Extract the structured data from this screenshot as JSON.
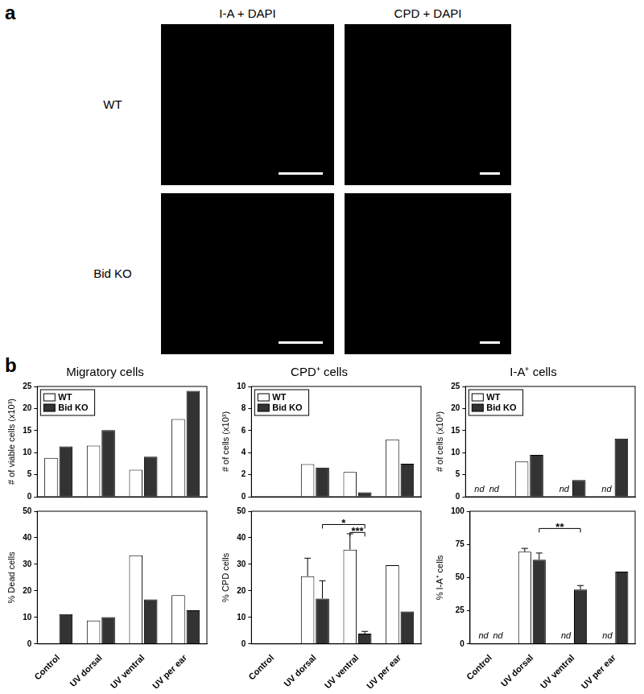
{
  "panel_a": {
    "label": "a",
    "columns": [
      "I-A + DAPI",
      "CPD + DAPI"
    ],
    "rows": [
      "WT",
      "Bid KO"
    ]
  },
  "panel_b": {
    "label": "b"
  },
  "chart_data": [
    {
      "type": "bar",
      "title": "Migratory cells",
      "ylabel": "# of viable cells (x10³)",
      "categories": [
        "Control",
        "UV dorsal",
        "UV ventral",
        "UV per ear"
      ],
      "series": [
        {
          "name": "WT",
          "color": "#ffffff",
          "values": [
            8.8,
            11.6,
            6.1,
            17.6
          ]
        },
        {
          "name": "Bid KO",
          "color": "#333333",
          "values": [
            11.4,
            15.1,
            9.1,
            24.0
          ]
        }
      ],
      "ylim": [
        0,
        25
      ],
      "yticks": [
        0,
        5,
        10,
        15,
        20,
        25
      ],
      "legend": "upper left",
      "tick_labels": "y"
    },
    {
      "type": "bar",
      "title": "CPD⁺ cells",
      "ylabel": "# of cells (x10³)",
      "categories": [
        "Control",
        "UV dorsal",
        "UV ventral",
        "UV per ear"
      ],
      "series": [
        {
          "name": "WT",
          "color": "#ffffff",
          "values": [
            null,
            2.95,
            2.25,
            5.2
          ]
        },
        {
          "name": "Bid KO",
          "color": "#333333",
          "values": [
            null,
            2.65,
            0.4,
            3.0
          ]
        }
      ],
      "ylim": [
        0,
        10
      ],
      "yticks": [
        0,
        2,
        4,
        6,
        8,
        10
      ],
      "legend": "upper left",
      "tick_labels": "y"
    },
    {
      "type": "bar",
      "title": "I-A⁺ cells",
      "ylabel": "# of cells (x10³)",
      "categories": [
        "Control",
        "UV dorsal",
        "UV ventral",
        "UV per ear"
      ],
      "series": [
        {
          "name": "WT",
          "color": "#ffffff",
          "values": [
            null,
            8.0,
            null,
            null
          ],
          "value_labels": [
            "nd",
            null,
            "nd",
            "nd"
          ]
        },
        {
          "name": "Bid KO",
          "color": "#333333",
          "values": [
            null,
            9.5,
            3.8,
            13.2
          ],
          "value_labels": [
            "nd",
            null,
            null,
            null
          ]
        }
      ],
      "ylim": [
        0,
        25
      ],
      "yticks": [
        0,
        5,
        10,
        15,
        20,
        25
      ],
      "legend": "upper left",
      "tick_labels": "y"
    },
    {
      "type": "bar",
      "ylabel": "% Dead cells",
      "categories": [
        "Control",
        "UV dorsal",
        "UV ventral",
        "UV per ear"
      ],
      "series": [
        {
          "name": "WT",
          "color": "#ffffff",
          "values": [
            null,
            8.8,
            33.4,
            18.4
          ]
        },
        {
          "name": "Bid KO",
          "color": "#333333",
          "values": [
            11.2,
            10.1,
            16.8,
            12.7
          ]
        }
      ],
      "ylim": [
        0,
        50
      ],
      "yticks": [
        0,
        10,
        20,
        30,
        40,
        50
      ]
    },
    {
      "type": "bar",
      "ylabel": "% CPD cells",
      "categories": [
        "Control",
        "UV dorsal",
        "UV ventral",
        "UV per ear"
      ],
      "series": [
        {
          "name": "WT",
          "color": "#ffffff",
          "values": [
            null,
            25.5,
            35.5,
            29.7
          ],
          "errors": [
            null,
            6.8,
            6.0,
            null
          ]
        },
        {
          "name": "Bid KO",
          "color": "#333333",
          "values": [
            null,
            17.1,
            3.9,
            12.2
          ],
          "errors": [
            null,
            6.7,
            0.8,
            null
          ]
        }
      ],
      "ylim": [
        0,
        50
      ],
      "yticks": [
        0,
        10,
        20,
        30,
        40,
        50
      ],
      "annotations": [
        {
          "text": "*",
          "from": [
            "UV dorsal",
            "Bid KO"
          ],
          "to": [
            "UV ventral",
            "Bid KO"
          ],
          "y": 45
        },
        {
          "text": "***",
          "from": [
            "UV ventral",
            "WT"
          ],
          "to": [
            "UV ventral",
            "Bid KO"
          ],
          "y": 42
        }
      ]
    },
    {
      "type": "bar",
      "ylabel": "% I-A⁺ cells",
      "categories": [
        "Control",
        "UV dorsal",
        "UV ventral",
        "UV per ear"
      ],
      "series": [
        {
          "name": "WT",
          "color": "#ffffff",
          "values": [
            null,
            69.5,
            null,
            null
          ],
          "errors": [
            null,
            2.5,
            null,
            null
          ],
          "value_labels": [
            "nd",
            null,
            "nd",
            "nd"
          ]
        },
        {
          "name": "Bid KO",
          "color": "#333333",
          "values": [
            null,
            63.5,
            41.0,
            54.5
          ],
          "errors": [
            null,
            5.0,
            3.0,
            null
          ],
          "value_labels": [
            "nd",
            null,
            null,
            null
          ]
        }
      ],
      "ylim": [
        0,
        100
      ],
      "yticks": [
        0,
        25,
        50,
        75,
        100
      ],
      "annotations": [
        {
          "text": "**",
          "from": [
            "UV dorsal",
            "Bid KO"
          ],
          "to": [
            "UV ventral",
            "Bid KO"
          ],
          "y": 87
        }
      ]
    }
  ]
}
